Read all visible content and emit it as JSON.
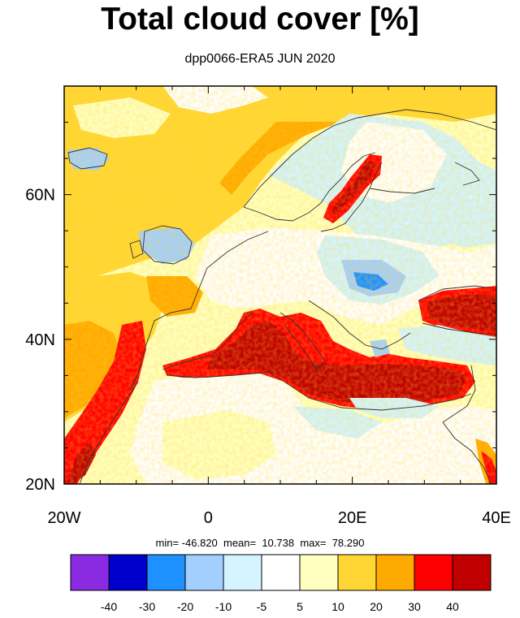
{
  "title": "Total cloud cover [%]",
  "subtitle": "dpp0066-ERA5 JUN 2020",
  "axes": {
    "lat_ticks": [
      {
        "value": 20,
        "label": "20N"
      },
      {
        "value": 40,
        "label": "40N"
      },
      {
        "value": 60,
        "label": "60N"
      }
    ],
    "lon_ticks": [
      {
        "value": -20,
        "label": "20W"
      },
      {
        "value": 0,
        "label": "0"
      },
      {
        "value": 20,
        "label": "20E"
      },
      {
        "value": 40,
        "label": "40E"
      }
    ],
    "lon_range": [
      -20,
      40
    ],
    "lat_range": [
      20,
      75
    ]
  },
  "stats": {
    "text": "min= -46.820  mean=  10.738  max=  78.290"
  },
  "colorbar": {
    "levels": [
      "-40",
      "-30",
      "-20",
      "-10",
      "-5",
      "5",
      "10",
      "20",
      "30",
      "40"
    ],
    "colors": [
      "#8a2be2",
      "#0000cd",
      "#1e90ff",
      "#a3cfff",
      "#d4f4ff",
      "#ffffff",
      "#ffffc0",
      "#ffd633",
      "#ffaa00",
      "#ff0000",
      "#c00000"
    ]
  },
  "chart_data": {
    "type": "heatmap",
    "title": "Total cloud cover [%]",
    "subtitle": "dpp0066-ERA5 JUN 2020",
    "xlim": [
      -20,
      40
    ],
    "ylim": [
      20,
      75
    ],
    "stats": {
      "min": -46.82,
      "mean": 10.738,
      "max": 78.29
    }
  }
}
